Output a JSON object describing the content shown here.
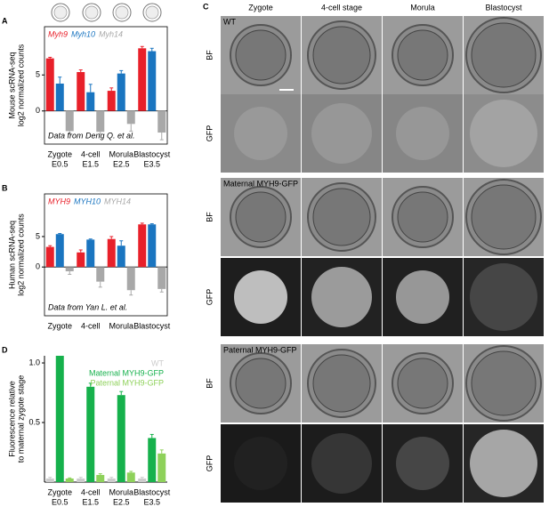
{
  "chart_data": [
    {
      "panel": "A",
      "type": "bar",
      "ylabel": [
        "Mouse scRNA-seq",
        "log2 normalized counts"
      ],
      "annotation": "Data from Deng Q. et al.",
      "categories": [
        "Zygote",
        "4-cell",
        "Morula",
        "Blastocyst"
      ],
      "category_sublabels": [
        "E0.5",
        "E1.5",
        "E2.5",
        "E3.5"
      ],
      "series": [
        {
          "name": "Myh9",
          "color": "#e8202a",
          "values": [
            7.3,
            5.4,
            2.8,
            8.7
          ],
          "errors": [
            0.15,
            0.3,
            0.4,
            0.25
          ]
        },
        {
          "name": "Myh10",
          "color": "#1a75c0",
          "values": [
            3.8,
            2.6,
            5.2,
            8.3
          ],
          "errors": [
            0.9,
            1.1,
            0.4,
            0.4
          ]
        },
        {
          "name": "Myh14",
          "color": "#a8a8a8",
          "values": [
            -2.8,
            -2.9,
            -1.8,
            -3.0
          ],
          "errors": [
            0.3,
            0.3,
            1.0,
            1.0
          ]
        }
      ],
      "ylim": [
        -4.6,
        11.7
      ],
      "yticks": [
        0,
        5
      ],
      "legend": "top-left"
    },
    {
      "panel": "B",
      "type": "bar",
      "ylabel": [
        "Human scRNA-seq",
        "log2 normalized counts"
      ],
      "annotation": "Data from Yan L. et al.",
      "categories": [
        "Zygote",
        "4-cell",
        "Morula",
        "Blastocyst"
      ],
      "series": [
        {
          "name": "MYH9",
          "color": "#e8202a",
          "values": [
            3.3,
            2.4,
            4.6,
            7.0
          ],
          "errors": [
            0.2,
            0.4,
            0.4,
            0.2
          ]
        },
        {
          "name": "MYH10",
          "color": "#1a75c0",
          "values": [
            5.4,
            4.5,
            3.5,
            7.0
          ],
          "errors": [
            0.1,
            0.1,
            0.8,
            0.1
          ]
        },
        {
          "name": "MYH14",
          "color": "#a8a8a8",
          "values": [
            -0.7,
            -2.4,
            -3.8,
            -3.6
          ],
          "errors": [
            0.5,
            0.9,
            0.8,
            0.5
          ]
        }
      ],
      "ylim": [
        -8,
        12
      ],
      "yticks": [
        0,
        5
      ],
      "legend": "top-left"
    },
    {
      "panel": "D",
      "type": "bar",
      "ylabel": [
        "Fluorescence relative",
        "to maternal zygote stage"
      ],
      "categories": [
        "Zygote",
        "4-cell",
        "Morula",
        "Blastocyst"
      ],
      "category_sublabels": [
        "E0.5",
        "E1.5",
        "E2.5",
        "E3.5"
      ],
      "series": [
        {
          "name": "WT",
          "color": "#cccccc",
          "values": [
            0.03,
            0.03,
            0.03,
            0.03
          ],
          "errors": [
            0.01,
            0.01,
            0.01,
            0.01
          ]
        },
        {
          "name": "Maternal MYH9-GFP",
          "color": "#16b14c",
          "values": [
            1.06,
            0.8,
            0.73,
            0.37
          ],
          "errors": [
            0.02,
            0.03,
            0.03,
            0.03
          ]
        },
        {
          "name": "Paternal MYH9-GFP",
          "color": "#8ed15a",
          "values": [
            0.03,
            0.06,
            0.08,
            0.24
          ],
          "errors": [
            0.005,
            0.01,
            0.01,
            0.03
          ]
        }
      ],
      "ylim": [
        0,
        1.06
      ],
      "yticks": [
        0.5,
        {
          "value": 1,
          "label": "1.0"
        }
      ],
      "legend": "top-right"
    }
  ],
  "panel_c": {
    "panel": "C",
    "columns": [
      "Zygote",
      "4-cell stage",
      "Morula",
      "Blastocyst"
    ],
    "row_labels": [
      "BF",
      "GFP"
    ],
    "groups": [
      "WT",
      "Maternal MYH9-GFP",
      "Paternal MYH9-GFP"
    ]
  }
}
